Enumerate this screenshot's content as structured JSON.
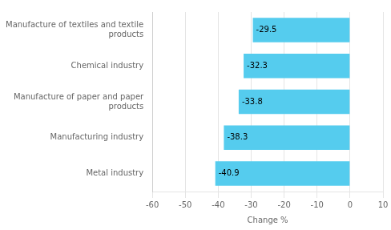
{
  "chart_data": {
    "type": "bar",
    "orientation": "horizontal",
    "categories": [
      "Metal industry",
      "Manufacturing industry",
      "Manufacture of paper and paper\nproducts",
      "Chemical industry",
      "Manufacture of textiles and textile\nproducts"
    ],
    "values": [
      -40.9,
      -38.3,
      -33.8,
      -32.3,
      -29.5
    ],
    "color": "#55CCEE",
    "xlabel": "Change %",
    "xlim": [
      -60,
      10
    ],
    "xticks": [
      -60,
      -50,
      -40,
      -30,
      -20,
      -10,
      0,
      10
    ],
    "grid": true,
    "data_labels": true
  }
}
